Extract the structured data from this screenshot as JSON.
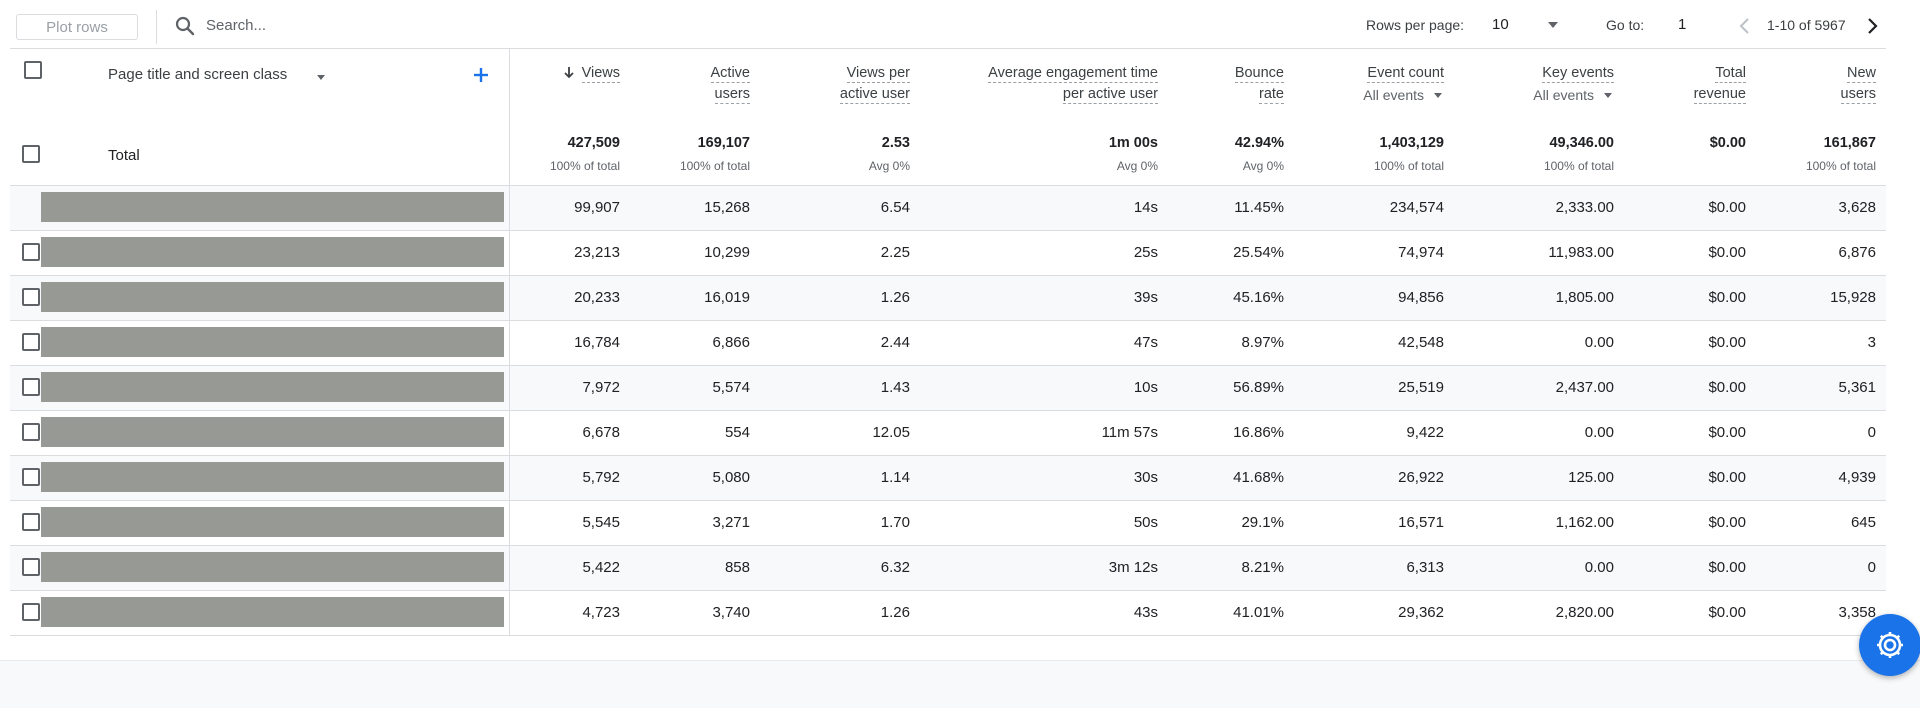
{
  "toolbar": {
    "plot_rows_label": "Plot rows",
    "search_placeholder": "Search...",
    "rows_per_page_label": "Rows per page:",
    "rows_per_page_value": "10",
    "goto_label": "Go to:",
    "goto_value": "1",
    "page_range": "1-10 of 5967"
  },
  "table": {
    "dimension_header": "Page title and screen class",
    "total_label": "Total",
    "columns": [
      {
        "name_line1": "Views",
        "name_line2": "",
        "sub": "",
        "total": "427,509",
        "total_sub": "100% of total"
      },
      {
        "name_line1": "Active",
        "name_line2": "users",
        "sub": "",
        "total": "169,107",
        "total_sub": "100% of total"
      },
      {
        "name_line1": "Views per",
        "name_line2": "active user",
        "sub": "",
        "total": "2.53",
        "total_sub": "Avg 0%"
      },
      {
        "name_line1": "Average engagement time",
        "name_line2": "per active user",
        "sub": "",
        "total": "1m 00s",
        "total_sub": "Avg 0%"
      },
      {
        "name_line1": "Bounce",
        "name_line2": "rate",
        "sub": "",
        "total": "42.94%",
        "total_sub": "Avg 0%"
      },
      {
        "name_line1": "Event count",
        "name_line2": "",
        "sub": "All events",
        "total": "1,403,129",
        "total_sub": "100% of total"
      },
      {
        "name_line1": "Key events",
        "name_line2": "",
        "sub": "All events",
        "total": "49,346.00",
        "total_sub": "100% of total"
      },
      {
        "name_line1": "Total",
        "name_line2": "revenue",
        "sub": "",
        "total": "$0.00",
        "total_sub": ""
      },
      {
        "name_line1": "New",
        "name_line2": "users",
        "sub": "",
        "total": "161,867",
        "total_sub": "100% of total"
      }
    ],
    "rows": [
      [
        "99,907",
        "15,268",
        "6.54",
        "14s",
        "11.45%",
        "234,574",
        "2,333.00",
        "$0.00",
        "3,628"
      ],
      [
        "23,213",
        "10,299",
        "2.25",
        "25s",
        "25.54%",
        "74,974",
        "11,983.00",
        "$0.00",
        "6,876"
      ],
      [
        "20,233",
        "16,019",
        "1.26",
        "39s",
        "45.16%",
        "94,856",
        "1,805.00",
        "$0.00",
        "15,928"
      ],
      [
        "16,784",
        "6,866",
        "2.44",
        "47s",
        "8.97%",
        "42,548",
        "0.00",
        "$0.00",
        "3"
      ],
      [
        "7,972",
        "5,574",
        "1.43",
        "10s",
        "56.89%",
        "25,519",
        "2,437.00",
        "$0.00",
        "5,361"
      ],
      [
        "6,678",
        "554",
        "12.05",
        "11m 57s",
        "16.86%",
        "9,422",
        "0.00",
        "$0.00",
        "0"
      ],
      [
        "5,792",
        "5,080",
        "1.14",
        "30s",
        "41.68%",
        "26,922",
        "125.00",
        "$0.00",
        "4,939"
      ],
      [
        "5,545",
        "3,271",
        "1.70",
        "50s",
        "29.1%",
        "16,571",
        "1,162.00",
        "$0.00",
        "645"
      ],
      [
        "5,422",
        "858",
        "6.32",
        "3m 12s",
        "8.21%",
        "6,313",
        "0.00",
        "$0.00",
        "0"
      ],
      [
        "4,723",
        "3,740",
        "1.26",
        "43s",
        "41.01%",
        "29,362",
        "2,820.00",
        "$0.00",
        "3,358"
      ]
    ]
  },
  "colors": {
    "accent": "#1a73e8",
    "redaction": "#979a94",
    "border": "#dadce0"
  },
  "icons": {
    "search": "search-icon",
    "sort": "arrow-down-icon",
    "add": "plus-icon",
    "prev": "chevron-left-icon",
    "next": "chevron-right-icon",
    "fab": "settings-gear-icon"
  }
}
